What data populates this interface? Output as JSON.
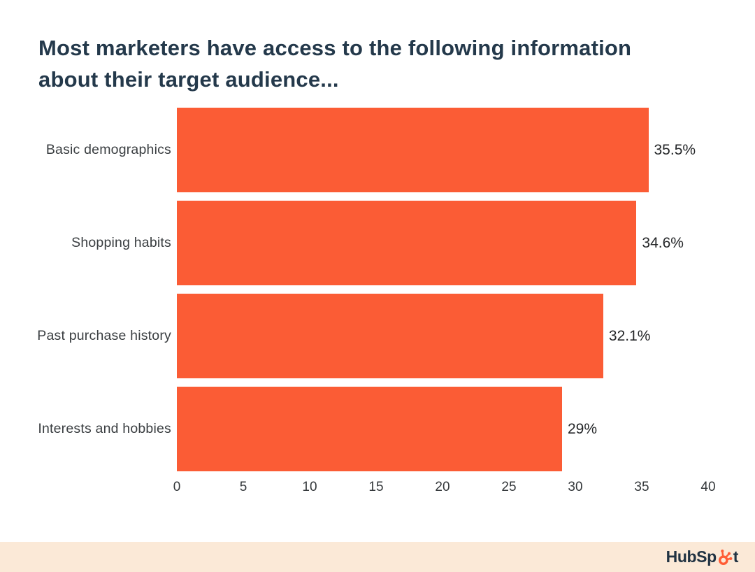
{
  "title": {
    "line1": "Most marketers have access to the following information",
    "line2": "about their target audience..."
  },
  "chart_data": {
    "type": "bar",
    "orientation": "horizontal",
    "title": "Most marketers have access to the following information about their target audience...",
    "categories": [
      "Basic demographics",
      "Shopping habits",
      "Past purchase history",
      "Interests and hobbies"
    ],
    "values": [
      35.5,
      34.6,
      32.1,
      29
    ],
    "value_labels": [
      "35.5%",
      "34.6%",
      "32.1%",
      "29%"
    ],
    "xlim": [
      0,
      40
    ],
    "xticks": [
      0,
      5,
      10,
      15,
      20,
      25,
      30,
      35,
      40
    ],
    "grid": false,
    "legend": false,
    "xlabel": "",
    "ylabel": ""
  },
  "colors": {
    "bar": "#FB5C35",
    "title_text": "#24394B",
    "footer_background": "#FBE9D7",
    "logo_text": "#213343",
    "logo_sprocket": "#FF5C35"
  },
  "footer": {
    "logo_text_before_sprocket": "HubSp",
    "logo_text_after_sprocket": "t"
  }
}
